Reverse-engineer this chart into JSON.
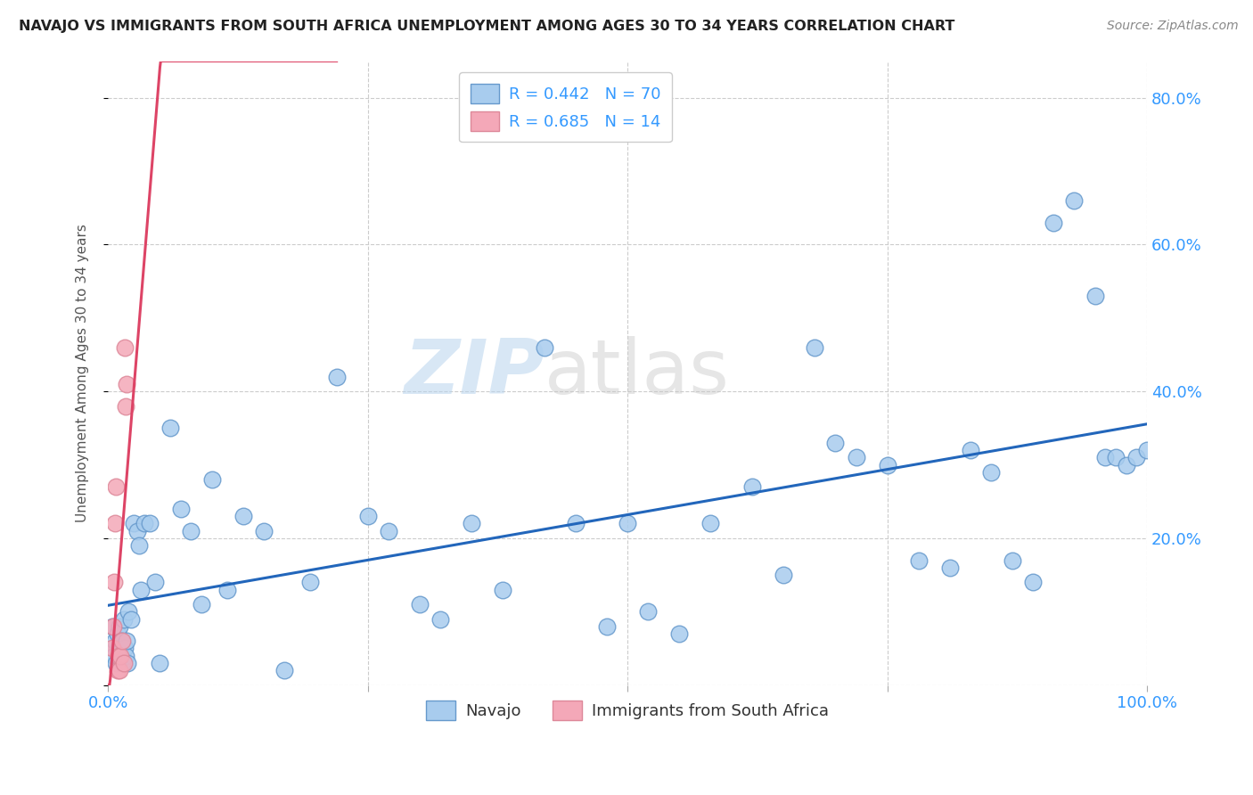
{
  "title": "NAVAJO VS IMMIGRANTS FROM SOUTH AFRICA UNEMPLOYMENT AMONG AGES 30 TO 34 YEARS CORRELATION CHART",
  "source": "Source: ZipAtlas.com",
  "ylabel": "Unemployment Among Ages 30 to 34 years",
  "xlim": [
    0,
    1.0
  ],
  "ylim": [
    0,
    0.85
  ],
  "watermark_zip": "ZIP",
  "watermark_atlas": "atlas",
  "navajo_R": 0.442,
  "navajo_N": 70,
  "sa_R": 0.685,
  "sa_N": 14,
  "navajo_color": "#A8CCEE",
  "sa_color": "#F4A8B8",
  "navajo_edge_color": "#6699CC",
  "sa_edge_color": "#DD8899",
  "navajo_line_color": "#2266BB",
  "sa_line_color": "#DD4466",
  "legend_labels": [
    "Navajo",
    "Immigrants from South Africa"
  ],
  "background_color": "#FFFFFF",
  "grid_color": "#CCCCCC",
  "navajo_scatter_x": [
    0.004,
    0.005,
    0.006,
    0.007,
    0.008,
    0.009,
    0.01,
    0.011,
    0.012,
    0.013,
    0.014,
    0.015,
    0.016,
    0.017,
    0.018,
    0.019,
    0.02,
    0.022,
    0.025,
    0.028,
    0.03,
    0.032,
    0.035,
    0.04,
    0.045,
    0.05,
    0.06,
    0.07,
    0.08,
    0.09,
    0.1,
    0.115,
    0.13,
    0.15,
    0.17,
    0.195,
    0.22,
    0.25,
    0.27,
    0.3,
    0.32,
    0.35,
    0.38,
    0.42,
    0.45,
    0.48,
    0.5,
    0.52,
    0.55,
    0.58,
    0.62,
    0.65,
    0.68,
    0.7,
    0.72,
    0.75,
    0.78,
    0.81,
    0.83,
    0.85,
    0.87,
    0.89,
    0.91,
    0.93,
    0.95,
    0.96,
    0.97,
    0.98,
    0.99,
    1.0
  ],
  "navajo_scatter_y": [
    0.08,
    0.05,
    0.04,
    0.06,
    0.03,
    0.07,
    0.05,
    0.08,
    0.04,
    0.06,
    0.03,
    0.09,
    0.05,
    0.04,
    0.06,
    0.03,
    0.1,
    0.09,
    0.22,
    0.21,
    0.19,
    0.13,
    0.22,
    0.22,
    0.14,
    0.03,
    0.35,
    0.24,
    0.21,
    0.11,
    0.28,
    0.13,
    0.23,
    0.21,
    0.02,
    0.14,
    0.42,
    0.23,
    0.21,
    0.11,
    0.09,
    0.22,
    0.13,
    0.46,
    0.22,
    0.08,
    0.22,
    0.1,
    0.07,
    0.22,
    0.27,
    0.15,
    0.46,
    0.33,
    0.31,
    0.3,
    0.17,
    0.16,
    0.32,
    0.29,
    0.17,
    0.14,
    0.63,
    0.66,
    0.53,
    0.31,
    0.31,
    0.3,
    0.31,
    0.32
  ],
  "sa_scatter_x": [
    0.004,
    0.005,
    0.006,
    0.007,
    0.008,
    0.009,
    0.01,
    0.011,
    0.012,
    0.014,
    0.015,
    0.016,
    0.017,
    0.018
  ],
  "sa_scatter_y": [
    0.05,
    0.08,
    0.14,
    0.22,
    0.27,
    0.02,
    0.04,
    0.02,
    0.04,
    0.06,
    0.03,
    0.46,
    0.38,
    0.41
  ],
  "yticks": [
    0.0,
    0.2,
    0.4,
    0.6,
    0.8
  ],
  "ytick_labels": [
    "",
    "20.0%",
    "40.0%",
    "60.0%",
    "80.0%"
  ],
  "xticks": [
    0.0,
    0.25,
    0.5,
    0.75,
    1.0
  ],
  "xtick_labels": [
    "0.0%",
    "",
    "",
    "",
    "100.0%"
  ]
}
